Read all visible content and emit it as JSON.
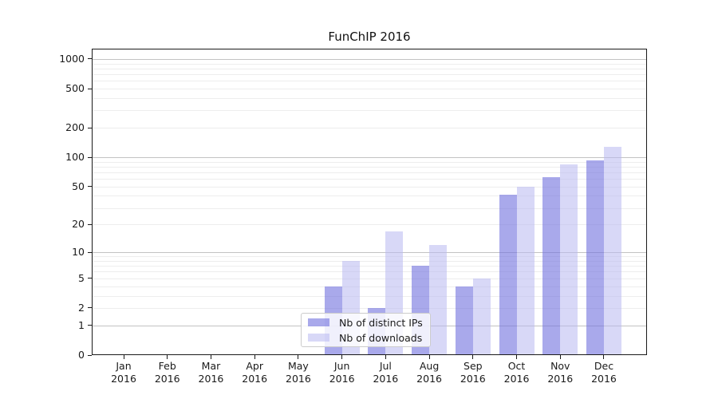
{
  "title": "FunChIP 2016",
  "legend": {
    "items": [
      {
        "label": "Nb of distinct IPs",
        "color_hex": "#a5a5ef"
      },
      {
        "label": "Nb of downloads",
        "color_hex": "#d8d8f7"
      }
    ]
  },
  "chart_data": {
    "type": "bar",
    "title": "FunChIP 2016",
    "xlabel": "",
    "ylabel": "",
    "year": "2016",
    "categories": [
      "Jan",
      "Feb",
      "Mar",
      "Apr",
      "May",
      "Jun",
      "Jul",
      "Aug",
      "Sep",
      "Oct",
      "Nov",
      "Dec"
    ],
    "series": [
      {
        "name": "Nb of distinct IPs",
        "values": [
          0,
          0,
          0,
          0,
          0,
          4,
          2,
          7,
          4,
          41,
          63,
          93
        ],
        "fill_rgba": "rgba(112,112,221,0.60)"
      },
      {
        "name": "Nb of downloads",
        "values": [
          0,
          0,
          0,
          0,
          0,
          8,
          17,
          12,
          5,
          50,
          85,
          127
        ],
        "fill_rgba": "rgba(184,184,240,0.55)"
      }
    ],
    "y_scale": "log10(1+x)",
    "y_ticks": [
      0,
      1,
      2,
      5,
      10,
      20,
      50,
      100,
      200,
      500,
      1000
    ],
    "ylim": [
      0,
      1300
    ],
    "grid": "major-at-1-10-100-1000, minor-at-2-to-9-per-decade",
    "legend_position": "inside-bottom-center",
    "colors": {
      "distinct_ips_over_white": "#a5a5ef",
      "downloads_over_white": "#d8d8f7",
      "major_grid": "#c3c3c3",
      "minor_grid": "#ededed",
      "spine": "#1a1a1a",
      "text": "#1a1a1a"
    }
  }
}
